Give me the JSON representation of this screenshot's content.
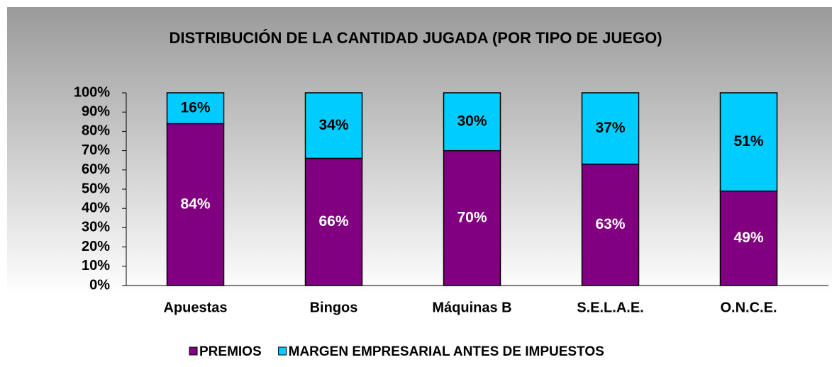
{
  "chart_data": {
    "type": "stacked_bar",
    "title": "DISTRIBUCIÓN DE LA CANTIDAD JUGADA (POR TIPO DE JUEGO)",
    "categories": [
      "Apuestas",
      "Bingos",
      "Máquinas B",
      "S.E.L.A.E.",
      "O.N.C.E."
    ],
    "series": [
      {
        "name": "PREMIOS",
        "color": "#800080",
        "values": [
          84,
          66,
          70,
          63,
          49
        ],
        "value_labels": [
          "84%",
          "66%",
          "70%",
          "63%",
          "49%"
        ]
      },
      {
        "name": "MARGEN EMPRESARIAL ANTES DE IMPUESTOS",
        "color": "#00ccff",
        "values": [
          16,
          34,
          30,
          37,
          51
        ],
        "value_labels": [
          "16%",
          "34%",
          "30%",
          "37%",
          "51%"
        ]
      }
    ],
    "ylim": [
      0,
      100
    ],
    "yticks": [
      {
        "value": 0,
        "label": "0%"
      },
      {
        "value": 10,
        "label": "10%"
      },
      {
        "value": 20,
        "label": "20%"
      },
      {
        "value": 30,
        "label": "30%"
      },
      {
        "value": 40,
        "label": "40%"
      },
      {
        "value": 50,
        "label": "50%"
      },
      {
        "value": 60,
        "label": "60%"
      },
      {
        "value": 70,
        "label": "70%"
      },
      {
        "value": 80,
        "label": "80%"
      },
      {
        "value": 90,
        "label": "90%"
      },
      {
        "value": 100,
        "label": "100%"
      }
    ],
    "legend": "bottom"
  }
}
